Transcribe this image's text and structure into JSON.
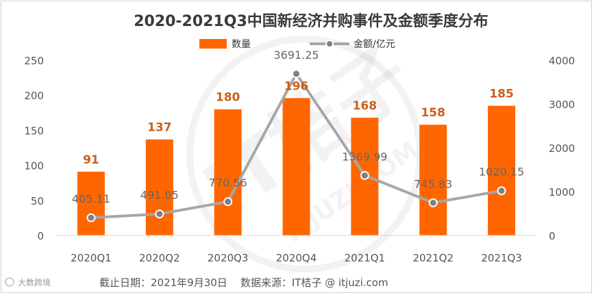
{
  "chart_data": {
    "type": "bar",
    "title": "2020-2021Q3中国新经济并购事件及金额季度分布",
    "categories": [
      "2020Q1",
      "2020Q2",
      "2020Q3",
      "2020Q4",
      "2021Q1",
      "2021Q2",
      "2021Q3"
    ],
    "series": [
      {
        "name": "数量",
        "type": "bar",
        "axis": "left",
        "color": "#ff6600",
        "values": [
          91,
          137,
          180,
          196,
          168,
          158,
          185
        ]
      },
      {
        "name": "金额/亿元",
        "type": "line",
        "axis": "right",
        "color": "#a6a6a6",
        "values": [
          405.11,
          491.05,
          770.56,
          3691.25,
          1369.99,
          745.83,
          1020.15
        ]
      }
    ],
    "bar_value_labels": [
      "91",
      "137",
      "180",
      "196",
      "168",
      "158",
      "185"
    ],
    "line_value_labels": [
      "405.11",
      "491.05",
      "770.56",
      "3691.25",
      "1369.99",
      "745.83",
      "1020.15"
    ],
    "y_left": {
      "min": 0,
      "max": 250,
      "ticks": [
        "0",
        "50",
        "100",
        "150",
        "200",
        "250"
      ]
    },
    "y_right": {
      "min": 0,
      "max": 4000,
      "ticks": [
        "0",
        "1000",
        "2000",
        "3000",
        "4000"
      ]
    },
    "legend_position": "top-center",
    "grid": false,
    "label_color": "#c8601a"
  },
  "footer": {
    "brand": "大数跨境",
    "note": "截止日期：2021年9月30日    数据来源：IT桔子 @ itjuzi.com"
  },
  "watermark": {
    "text": "IT桔子",
    "subtext": "ITJUZI.COM"
  }
}
